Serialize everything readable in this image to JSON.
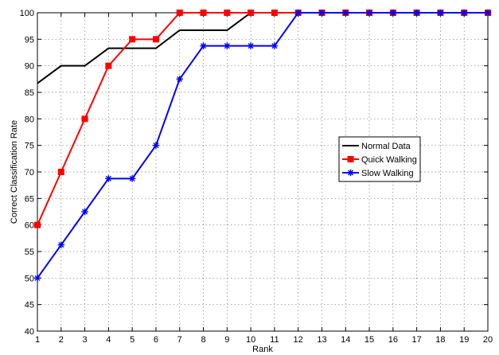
{
  "chart_data": {
    "type": "line",
    "title": "",
    "xlabel": "Rank",
    "ylabel": "Correct Classification Rate",
    "xlim": [
      1,
      20
    ],
    "ylim": [
      40,
      100
    ],
    "x": [
      1,
      2,
      3,
      4,
      5,
      6,
      7,
      8,
      9,
      10,
      11,
      12,
      13,
      14,
      15,
      16,
      17,
      18,
      19,
      20
    ],
    "xticks": [
      "1",
      "2",
      "3",
      "4",
      "5",
      "6",
      "7",
      "8",
      "9",
      "10",
      "11",
      "12",
      "13",
      "14",
      "15",
      "16",
      "17",
      "18",
      "19",
      "20"
    ],
    "yticks": [
      "40",
      "45",
      "50",
      "55",
      "60",
      "65",
      "70",
      "75",
      "80",
      "85",
      "90",
      "95",
      "100"
    ],
    "grid": true,
    "legend_position": "right",
    "series": [
      {
        "name": "Normal Data",
        "color": "#000000",
        "marker": "none",
        "values": [
          86.7,
          90,
          90,
          93.3,
          93.3,
          93.3,
          96.7,
          96.7,
          96.7,
          100,
          100,
          100,
          100,
          100,
          100,
          100,
          100,
          100,
          100,
          100
        ]
      },
      {
        "name": "Quick Walking",
        "color": "#ff0000",
        "marker": "square",
        "values": [
          60,
          70,
          80,
          90,
          95,
          95,
          100,
          100,
          100,
          100,
          100,
          100,
          100,
          100,
          100,
          100,
          100,
          100,
          100,
          100
        ]
      },
      {
        "name": "Slow Walking",
        "color": "#0000ff",
        "marker": "asterisk",
        "values": [
          50,
          56.25,
          62.5,
          68.75,
          68.75,
          75,
          87.5,
          93.75,
          93.75,
          93.75,
          93.75,
          100,
          100,
          100,
          100,
          100,
          100,
          100,
          100,
          100
        ]
      }
    ]
  }
}
